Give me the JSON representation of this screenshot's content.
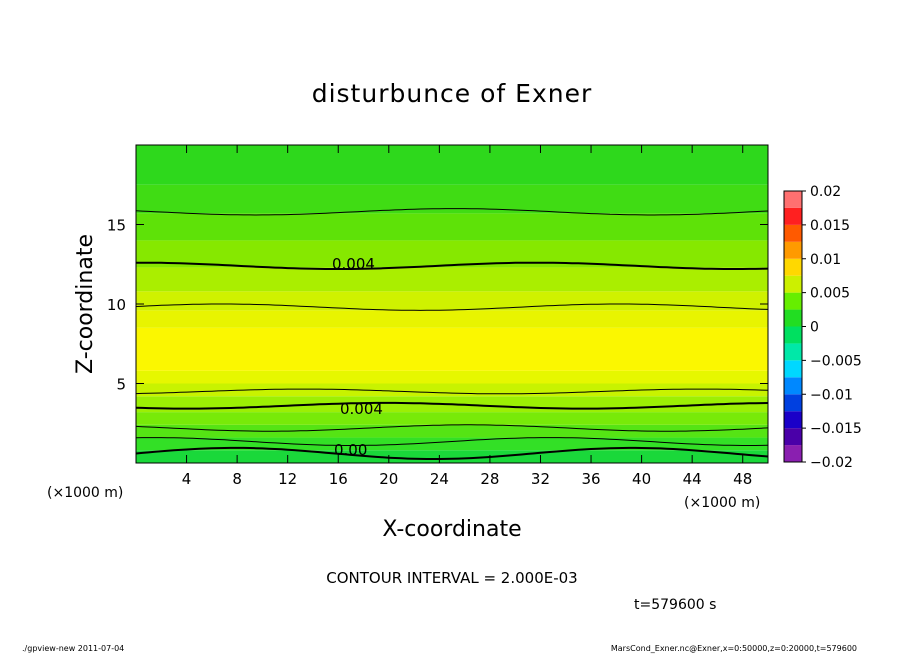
{
  "chart_data": {
    "type": "heatmap",
    "title": "disturbunce of Exner",
    "xlabel": "X-coordinate",
    "ylabel": "Z-coordinate",
    "x_unit_left": "(×1000 m)",
    "x_unit_right": "(×1000 m)",
    "xlim": [
      0,
      50
    ],
    "ylim": [
      0,
      20
    ],
    "xticks": [
      "4",
      "8",
      "12",
      "16",
      "20",
      "24",
      "28",
      "32",
      "36",
      "40",
      "44",
      "48"
    ],
    "yticks": [
      "5",
      "10",
      "15"
    ],
    "contour_labels": [
      "0.004",
      "0.004",
      "0.00"
    ],
    "contour_interval_text": "CONTOUR INTERVAL = 2.000E-03",
    "time_text": "t=579600 s",
    "colorbar": {
      "labels": [
        "0.02",
        "0.015",
        "0.01",
        "0.005",
        "0",
        "−0.005",
        "−0.01",
        "−0.015",
        "−0.02"
      ],
      "bins": [
        {
          "from": -0.02,
          "to": -0.0175,
          "color": "#8a1fb0"
        },
        {
          "from": -0.0175,
          "to": -0.015,
          "color": "#4a00a8"
        },
        {
          "from": -0.015,
          "to": -0.0125,
          "color": "#1a00c8"
        },
        {
          "from": -0.0125,
          "to": -0.01,
          "color": "#0040e0"
        },
        {
          "from": -0.01,
          "to": -0.0075,
          "color": "#0088ff"
        },
        {
          "from": -0.0075,
          "to": -0.005,
          "color": "#00d8ff"
        },
        {
          "from": -0.005,
          "to": -0.0025,
          "color": "#00e8a8"
        },
        {
          "from": -0.0025,
          "to": 0,
          "color": "#00e060"
        },
        {
          "from": 0,
          "to": 0.0025,
          "color": "#22dd22"
        },
        {
          "from": 0.0025,
          "to": 0.005,
          "color": "#66ee00"
        },
        {
          "from": 0.005,
          "to": 0.0075,
          "color": "#ccf000"
        },
        {
          "from": 0.0075,
          "to": 0.01,
          "color": "#ffd800"
        },
        {
          "from": 0.01,
          "to": 0.0125,
          "color": "#ff9a00"
        },
        {
          "from": 0.0125,
          "to": 0.015,
          "color": "#ff5a00"
        },
        {
          "from": 0.015,
          "to": 0.0175,
          "color": "#ff2020"
        },
        {
          "from": 0.0175,
          "to": 0.02,
          "color": "#ff7070"
        }
      ]
    },
    "field_bands": [
      {
        "z_from": 0,
        "z_to": 0.8,
        "color": "#1ad83a"
      },
      {
        "z_from": 0.8,
        "z_to": 1.6,
        "color": "#33e026"
      },
      {
        "z_from": 1.6,
        "z_to": 2.4,
        "color": "#55e414"
      },
      {
        "z_from": 2.4,
        "z_to": 3.2,
        "color": "#78ea08"
      },
      {
        "z_from": 3.2,
        "z_to": 4.2,
        "color": "#9cef04"
      },
      {
        "z_from": 4.2,
        "z_to": 5.0,
        "color": "#c8f300"
      },
      {
        "z_from": 5.0,
        "z_to": 5.8,
        "color": "#e6f700"
      },
      {
        "z_from": 5.8,
        "z_to": 8.5,
        "color": "#fbf700"
      },
      {
        "z_from": 8.5,
        "z_to": 9.6,
        "color": "#e8f400"
      },
      {
        "z_from": 9.6,
        "z_to": 10.8,
        "color": "#cff200"
      },
      {
        "z_from": 10.8,
        "z_to": 12.3,
        "color": "#aaee00"
      },
      {
        "z_from": 12.3,
        "z_to": 14.0,
        "color": "#86e800"
      },
      {
        "z_from": 14.0,
        "z_to": 15.7,
        "color": "#5ee208"
      },
      {
        "z_from": 15.7,
        "z_to": 17.5,
        "color": "#40dc14"
      },
      {
        "z_from": 17.5,
        "z_to": 20.0,
        "color": "#2ed81c"
      }
    ],
    "contours": [
      {
        "z": 0.6,
        "amp": 0.35,
        "bold": true
      },
      {
        "z": 1.35,
        "amp": 0.25,
        "bold": false
      },
      {
        "z": 2.2,
        "amp": 0.2,
        "bold": false
      },
      {
        "z": 3.6,
        "amp": 0.18,
        "bold": true
      },
      {
        "z": 4.5,
        "amp": 0.15,
        "bold": false
      },
      {
        "z": 9.8,
        "amp": 0.2,
        "bold": false
      },
      {
        "z": 12.4,
        "amp": 0.2,
        "bold": true
      },
      {
        "z": 15.8,
        "amp": 0.2,
        "bold": false
      }
    ]
  },
  "footer": {
    "left": "./gpview-new   2011-07-04",
    "right": "MarsCond_Exner.nc@Exner,x=0:50000,z=0:20000,t=579600"
  }
}
